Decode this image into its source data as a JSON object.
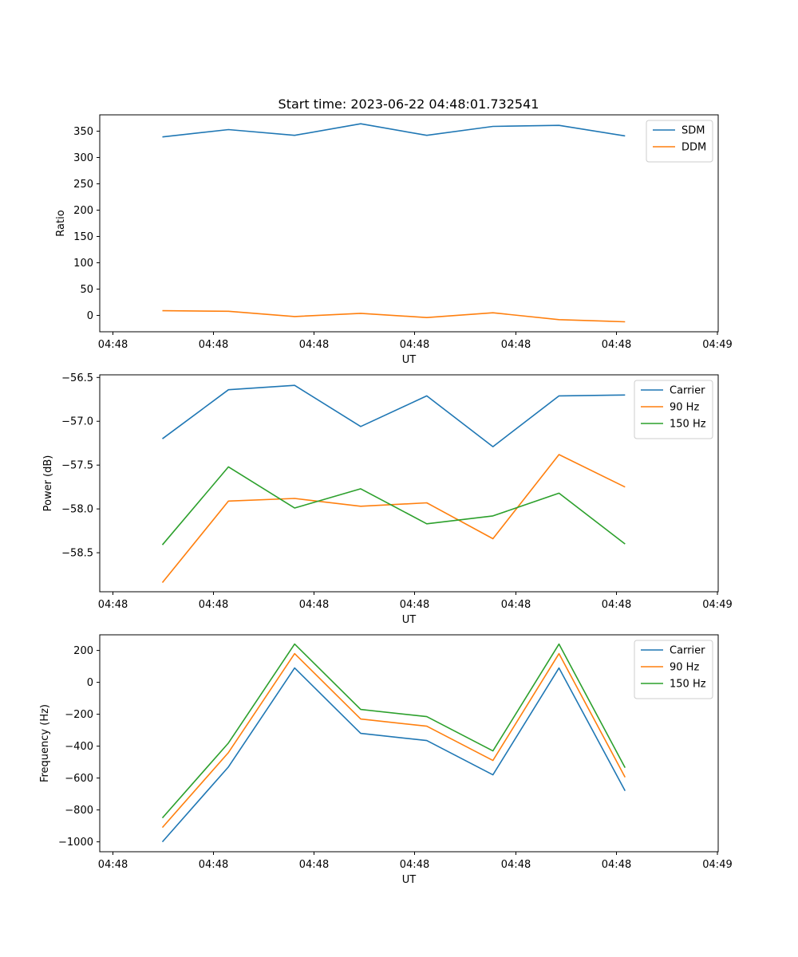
{
  "figure_title": "Start time: 2023-06-22 04:48:01.732541",
  "chart_data": [
    {
      "type": "line",
      "title": "Start time: 2023-06-22 04:48:01.732541",
      "xlabel": "UT",
      "ylabel": "Ratio",
      "x_tick_labels": [
        "04:48",
        "04:48",
        "04:48",
        "04:48",
        "04:48",
        "04:48",
        "04:48"
      ],
      "x_tick_end_label": "04:49",
      "yticks": [
        0,
        50,
        100,
        150,
        200,
        250,
        300,
        350
      ],
      "ylim": [
        -31,
        381
      ],
      "legend": "top-right",
      "series": [
        {
          "name": "SDM",
          "color": "#1f77b4",
          "values": [
            339,
            353,
            342,
            364,
            342,
            359,
            361,
            341
          ]
        },
        {
          "name": "DDM",
          "color": "#ff7f0e",
          "values": [
            9,
            8,
            -2,
            4,
            -4,
            5,
            -8,
            -12
          ]
        }
      ]
    },
    {
      "type": "line",
      "title": "",
      "xlabel": "UT",
      "ylabel": "Power (dB)",
      "x_tick_labels": [
        "04:48",
        "04:48",
        "04:48",
        "04:48",
        "04:48",
        "04:48",
        "04:48"
      ],
      "x_tick_end_label": "04:49",
      "yticks": [
        -58.5,
        -58.0,
        -57.5,
        -57.0,
        -56.5
      ],
      "ytick_labels": [
        "−58.5",
        "−58.0",
        "−57.5",
        "−57.0",
        "−56.5"
      ],
      "ylim": [
        -58.945,
        -56.47
      ],
      "legend": "top-right",
      "series": [
        {
          "name": "Carrier",
          "color": "#1f77b4",
          "values": [
            -57.2,
            -56.64,
            -56.59,
            -57.06,
            -56.71,
            -57.29,
            -56.71,
            -56.7
          ]
        },
        {
          "name": "90 Hz",
          "color": "#ff7f0e",
          "values": [
            -58.84,
            -57.91,
            -57.88,
            -57.97,
            -57.93,
            -58.34,
            -57.38,
            -57.75
          ]
        },
        {
          "name": "150 Hz",
          "color": "#2ca02c",
          "values": [
            -58.41,
            -57.52,
            -57.99,
            -57.77,
            -58.17,
            -58.08,
            -57.82,
            -58.4
          ]
        }
      ]
    },
    {
      "type": "line",
      "title": "",
      "xlabel": "UT",
      "ylabel": "Frequency (Hz)",
      "x_tick_labels": [
        "04:48",
        "04:48",
        "04:48",
        "04:48",
        "04:48",
        "04:48",
        "04:48"
      ],
      "x_tick_end_label": "04:49",
      "yticks": [
        -1000,
        -800,
        -600,
        -400,
        -200,
        0,
        200
      ],
      "ytick_labels": [
        "−1000",
        "−800",
        "−600",
        "−400",
        "−200",
        "0",
        "200"
      ],
      "ylim": [
        -1062,
        298
      ],
      "legend": "top-right",
      "series": [
        {
          "name": "Carrier",
          "color": "#1f77b4",
          "values": [
            -1000,
            -530,
            90,
            -320,
            -365,
            -580,
            90,
            -680
          ]
        },
        {
          "name": "90 Hz",
          "color": "#ff7f0e",
          "values": [
            -910,
            -440,
            180,
            -230,
            -275,
            -490,
            180,
            -595
          ]
        },
        {
          "name": "150 Hz",
          "color": "#2ca02c",
          "values": [
            -850,
            -380,
            240,
            -170,
            -215,
            -430,
            240,
            -535
          ]
        }
      ]
    }
  ]
}
